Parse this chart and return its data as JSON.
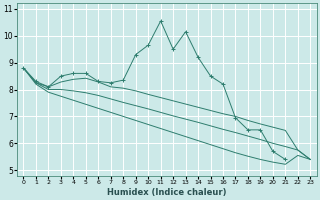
{
  "xlabel": "Humidex (Indice chaleur)",
  "bg_color": "#cce9e8",
  "grid_color": "#ffffff",
  "line_color": "#2e7d6e",
  "xlim": [
    -0.5,
    23.5
  ],
  "ylim": [
    4.8,
    11.2
  ],
  "yticks": [
    5,
    6,
    7,
    8,
    9,
    10,
    11
  ],
  "xticks": [
    0,
    1,
    2,
    3,
    4,
    5,
    6,
    7,
    8,
    9,
    10,
    11,
    12,
    13,
    14,
    15,
    16,
    17,
    18,
    19,
    20,
    21,
    22,
    23
  ],
  "jagged": [
    8.8,
    8.3,
    8.1,
    8.5,
    8.6,
    8.6,
    8.3,
    8.25,
    8.35,
    9.3,
    9.65,
    10.55,
    9.5,
    10.15,
    9.2,
    8.5,
    8.2,
    6.95,
    6.5,
    6.5,
    5.7,
    5.4,
    null,
    null
  ],
  "line1": [
    8.8,
    8.25,
    8.1,
    8.28,
    8.38,
    8.42,
    8.28,
    8.1,
    8.05,
    7.95,
    7.82,
    7.7,
    7.58,
    7.46,
    7.34,
    7.22,
    7.1,
    7.0,
    6.85,
    6.72,
    6.6,
    6.48,
    5.75,
    5.4
  ],
  "line2": [
    8.8,
    8.25,
    8.0,
    8.0,
    7.95,
    7.88,
    7.78,
    7.65,
    7.52,
    7.4,
    7.28,
    7.15,
    7.02,
    6.9,
    6.78,
    6.65,
    6.52,
    6.4,
    6.27,
    6.14,
    6.0,
    5.88,
    5.75,
    5.4
  ],
  "line3": [
    8.8,
    8.2,
    7.9,
    7.75,
    7.6,
    7.45,
    7.3,
    7.15,
    7.0,
    6.85,
    6.7,
    6.55,
    6.4,
    6.25,
    6.1,
    5.95,
    5.8,
    5.65,
    5.52,
    5.4,
    5.3,
    5.22,
    5.55,
    5.4
  ]
}
